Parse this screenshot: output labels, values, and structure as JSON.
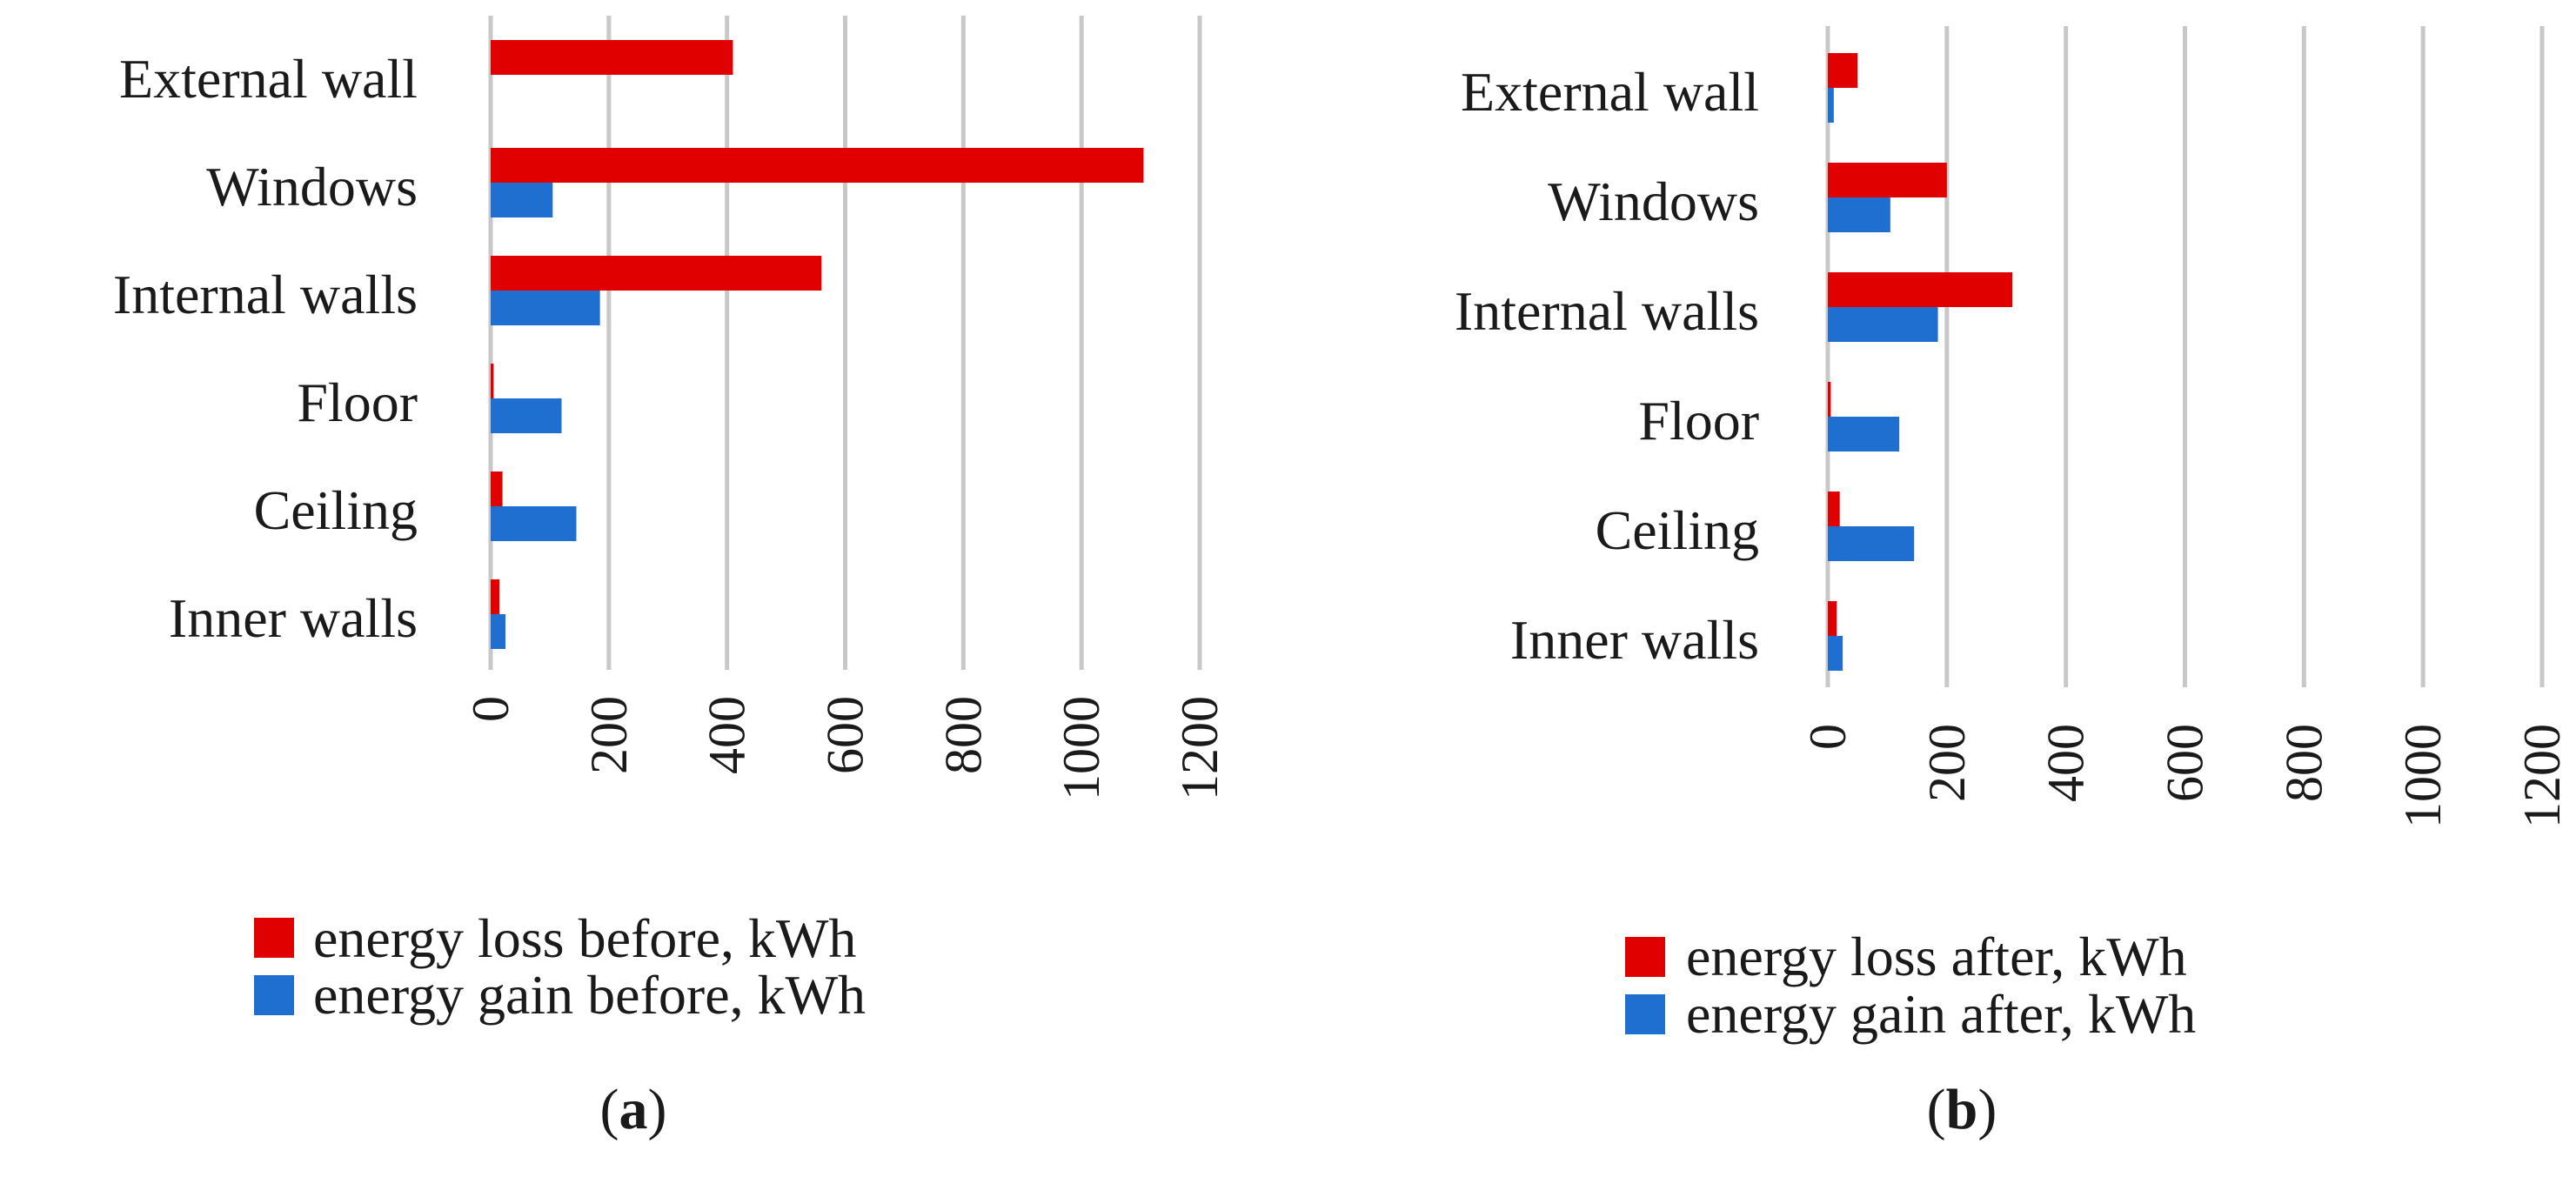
{
  "chart_data": [
    {
      "type": "bar",
      "orientation": "horizontal",
      "label": "a",
      "categories": [
        "External wall",
        "Windows",
        "Internal walls",
        "Floor",
        "Ceiling",
        "Inner walls"
      ],
      "series": [
        {
          "name": "energy loss before, kWh",
          "color": "#e00000",
          "values": [
            410,
            1105,
            560,
            5,
            20,
            15
          ]
        },
        {
          "name": "energy gain before, kWh",
          "color": "#1f6fd0",
          "values": [
            0,
            105,
            185,
            120,
            145,
            25
          ]
        }
      ],
      "xlim": [
        0,
        1200
      ],
      "xticks": [
        0,
        200,
        400,
        600,
        800,
        1000,
        1200
      ],
      "grid": true,
      "legend": "bottom"
    },
    {
      "type": "bar",
      "orientation": "horizontal",
      "label": "b",
      "categories": [
        "External wall",
        "Windows",
        "Internal walls",
        "Floor",
        "Ceiling",
        "Inner walls"
      ],
      "series": [
        {
          "name": "energy loss after, kWh",
          "color": "#e00000",
          "values": [
            50,
            200,
            310,
            5,
            20,
            15
          ]
        },
        {
          "name": "energy gain after, kWh",
          "color": "#1f6fd0",
          "values": [
            10,
            105,
            185,
            120,
            145,
            25
          ]
        }
      ],
      "xlim": [
        0,
        1200
      ],
      "xticks": [
        0,
        200,
        400,
        600,
        800,
        1000,
        1200
      ],
      "grid": true,
      "legend": "bottom"
    }
  ]
}
